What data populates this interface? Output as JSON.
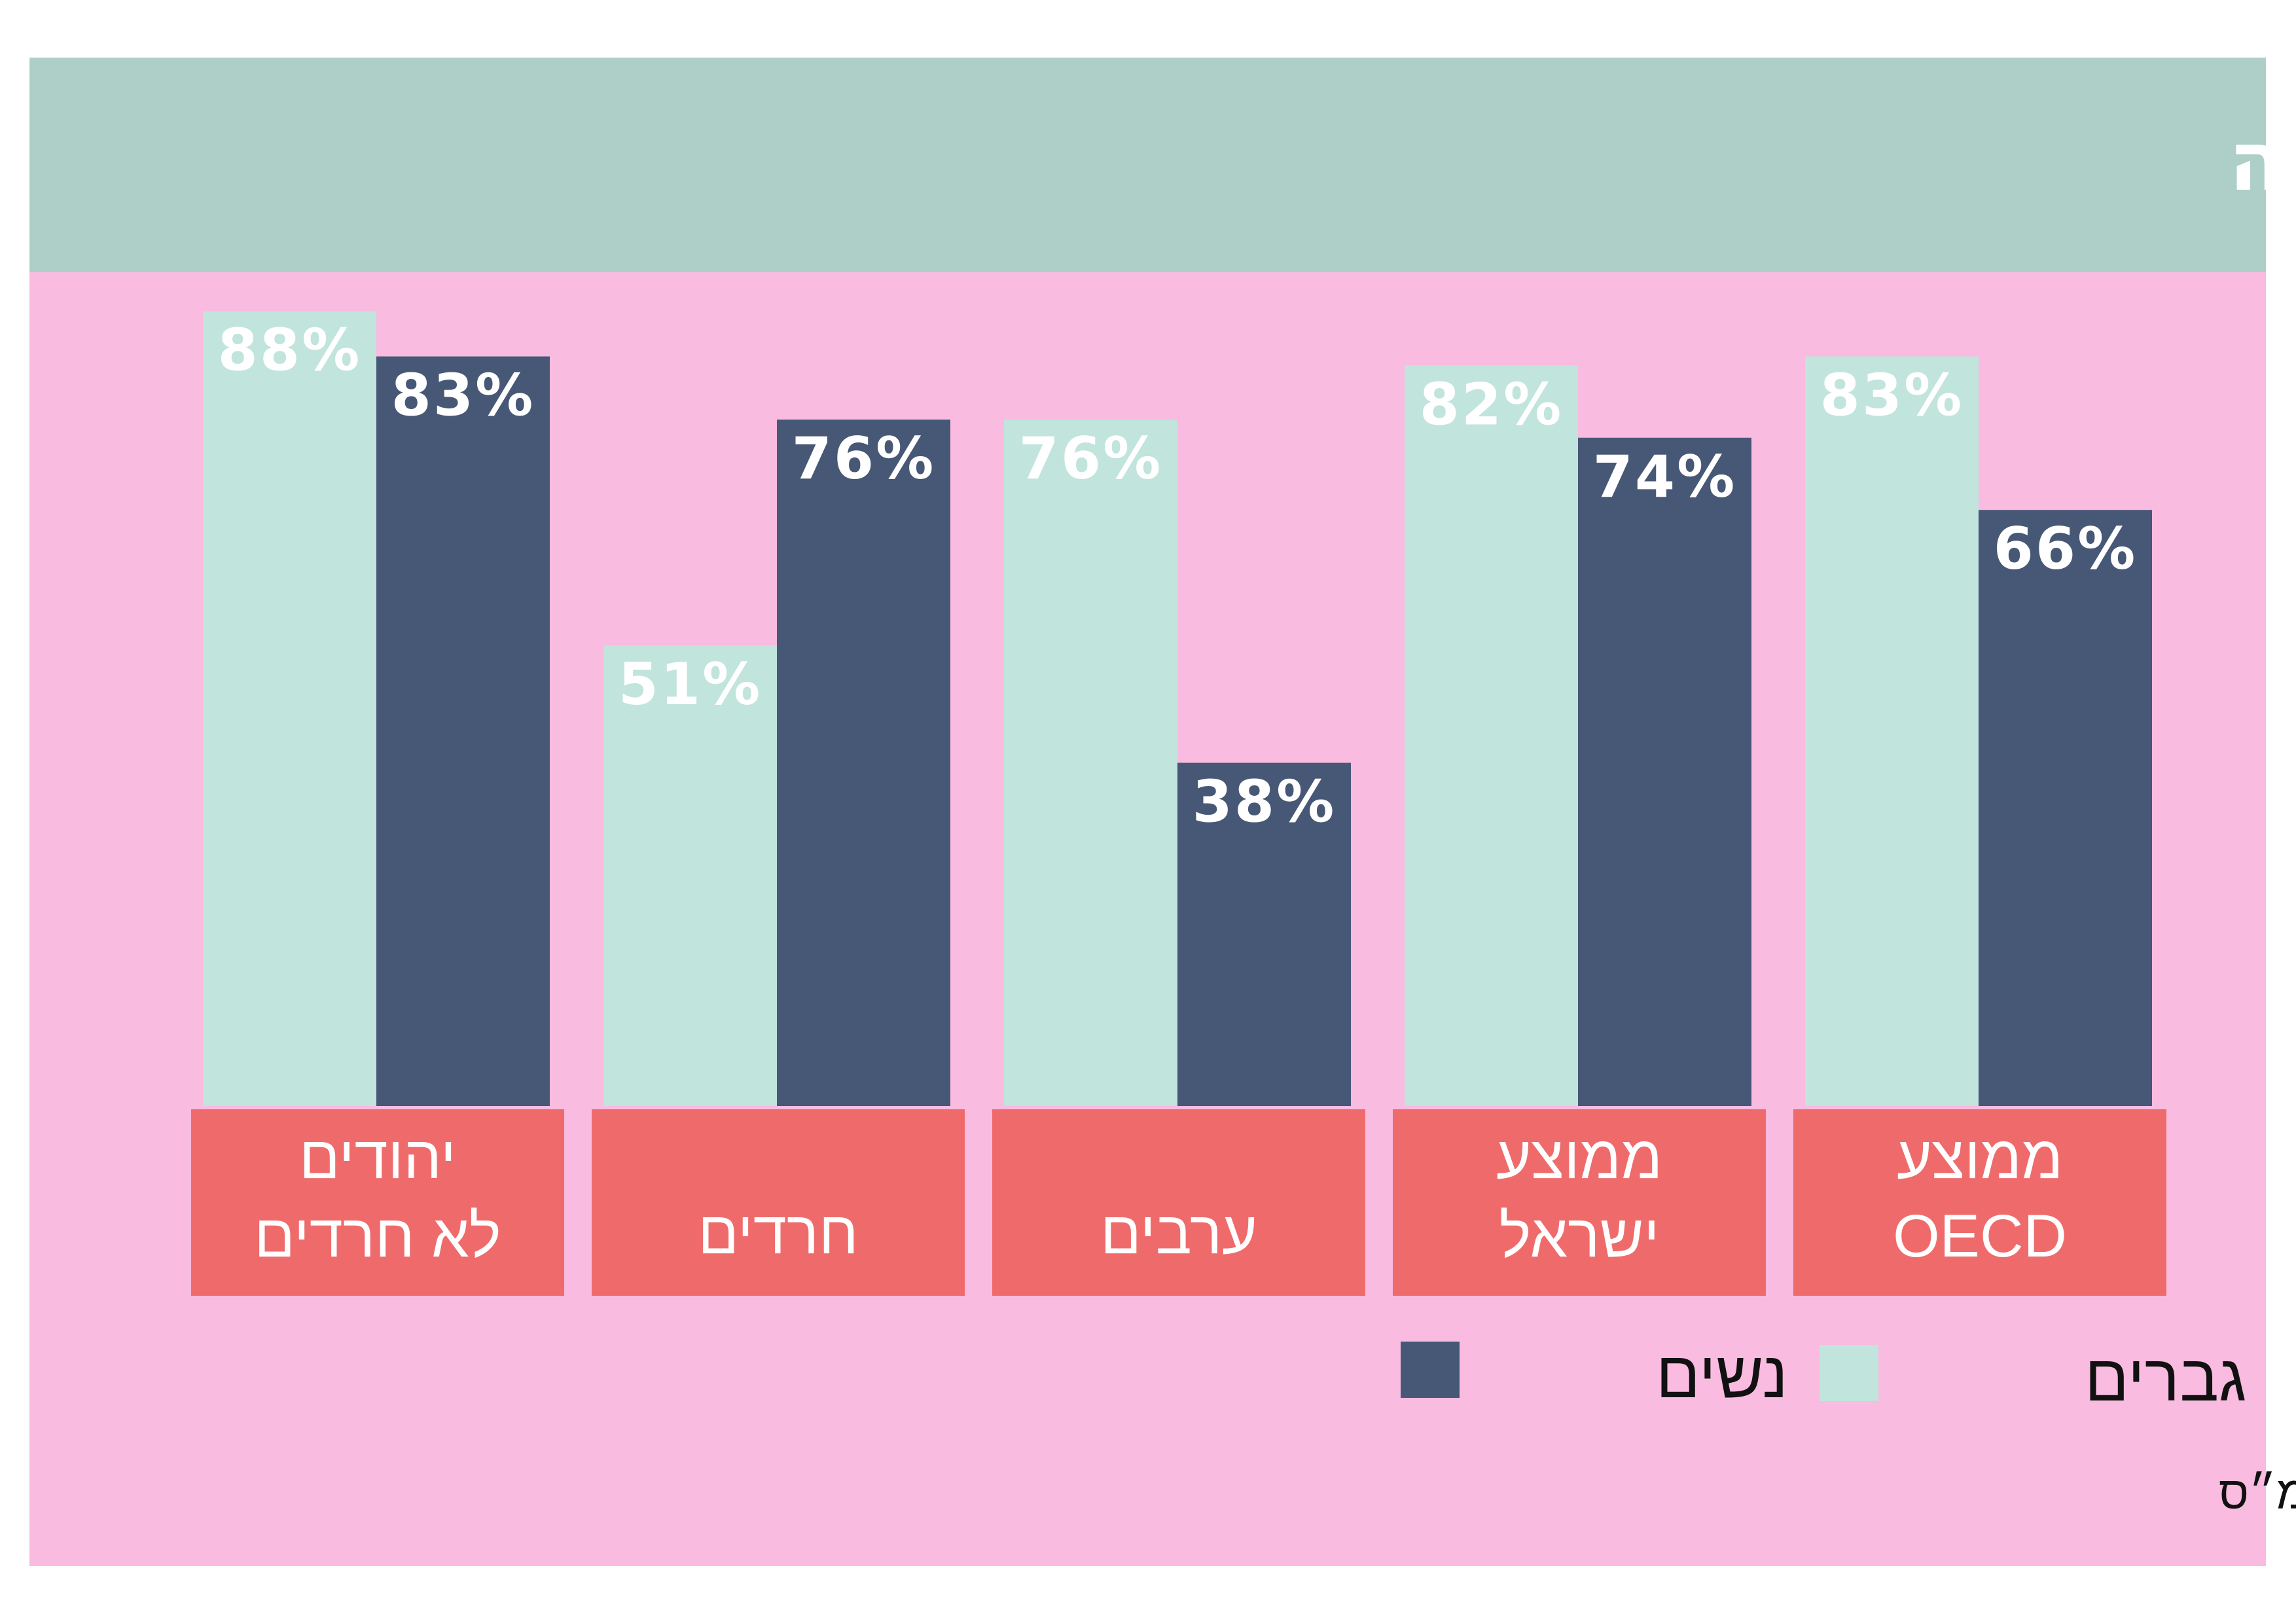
{
  "colors": {
    "men": "#c1e4dc",
    "women": "#465875",
    "background": "#f9bbe0",
    "header": "#aecfc8",
    "category_box": "#ef6b6b",
    "value_text": "#ffffff"
  },
  "chart_data": {
    "type": "bar",
    "title": "שיעור התעסוקה לפי קבוצות אוכלוסייה",
    "categories": [
      [
        "יהודים",
        "לא חרדים"
      ],
      [
        "חרדים"
      ],
      [
        "ערבים"
      ],
      [
        "ממוצע",
        "ישראל"
      ],
      [
        "ממוצע",
        "OECD"
      ]
    ],
    "series": [
      {
        "name": "גברים",
        "key": "men",
        "values": [
          88,
          51,
          76,
          82,
          83
        ],
        "labels": [
          "88%",
          "51%",
          "76%",
          "82%",
          "83%"
        ]
      },
      {
        "name": "נשים",
        "key": "women",
        "values": [
          83,
          76,
          38,
          74,
          66
        ],
        "labels": [
          "83%",
          "76%",
          "38%",
          "74%",
          "66%"
        ]
      }
    ],
    "unit": "%",
    "ylim": [
      0,
      100
    ],
    "grid": false,
    "legend_position": "bottom-right",
    "footnote": "* נתונים: ה־OECD והלמ״ס"
  }
}
